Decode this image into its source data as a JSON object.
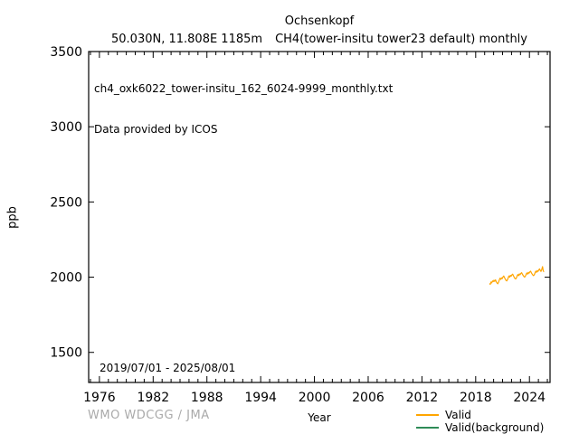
{
  "header": {
    "title": "Ochsenkopf",
    "subtitle_left": "50.030N, 11.808E 1185m",
    "subtitle_right": "CH4(tower-insitu tower23 default) monthly"
  },
  "plot": {
    "annotation_line1": "ch4_oxk6022_tower-insitu_162_6024-9999_monthly.txt",
    "annotation_line2": "Data provided by ICOS",
    "date_range": "2019/07/01 - 2025/08/01"
  },
  "footer": {
    "credit": "WMO WDCGG / JMA"
  },
  "colors": {
    "valid_line": "#FFA500",
    "background_line": "#2E8B57",
    "credit_text": "#AAAAAA",
    "axis": "#000000"
  },
  "chart_data": {
    "type": "line",
    "title": "Ochsenkopf",
    "subtitle": "50.030N, 11.808E 1185m  CH4(tower-insitu tower23 default) monthly",
    "xlabel": "Year",
    "ylabel": "ppb",
    "xlim": [
      1974.8,
      2026.3
    ],
    "ylim": [
      1300,
      3500
    ],
    "x_ticks_major": [
      1976,
      1982,
      1988,
      1994,
      2000,
      2006,
      2012,
      2018,
      2024
    ],
    "x_minor_tick_step_years": 1,
    "y_ticks_major": [
      1500,
      2000,
      2500,
      3000,
      3500
    ],
    "grid": false,
    "legend_position": "below-right",
    "series": [
      {
        "name": "Valid",
        "color": "#FFA500",
        "x_start": 2019.5417,
        "x_step": 0.08333,
        "start_label": "2019-07",
        "end_label": "2025-08",
        "values": [
          1958,
          1952,
          1968,
          1962,
          1975,
          1970,
          1980,
          1972,
          1982,
          1970,
          1962,
          1956,
          1965,
          1980,
          1993,
          1985,
          1996,
          1990,
          2000,
          2008,
          1998,
          1988,
          1980,
          1975,
          1982,
          1995,
          2008,
          2000,
          2012,
          2006,
          2015,
          2020,
          2010,
          2000,
          1992,
          1988,
          1995,
          2008,
          2018,
          2010,
          2022,
          2016,
          2025,
          2030,
          2020,
          2012,
          2005,
          2000,
          2006,
          2018,
          2028,
          2020,
          2032,
          2026,
          2035,
          2040,
          2030,
          2022,
          2015,
          2010,
          2016,
          2028,
          2040,
          2032,
          2044,
          2038,
          2048,
          2055,
          2045,
          2038,
          2050,
          2070,
          2042,
          2035
        ]
      },
      {
        "name": "Valid(background)",
        "color": "#2E8B57",
        "values": []
      }
    ]
  }
}
